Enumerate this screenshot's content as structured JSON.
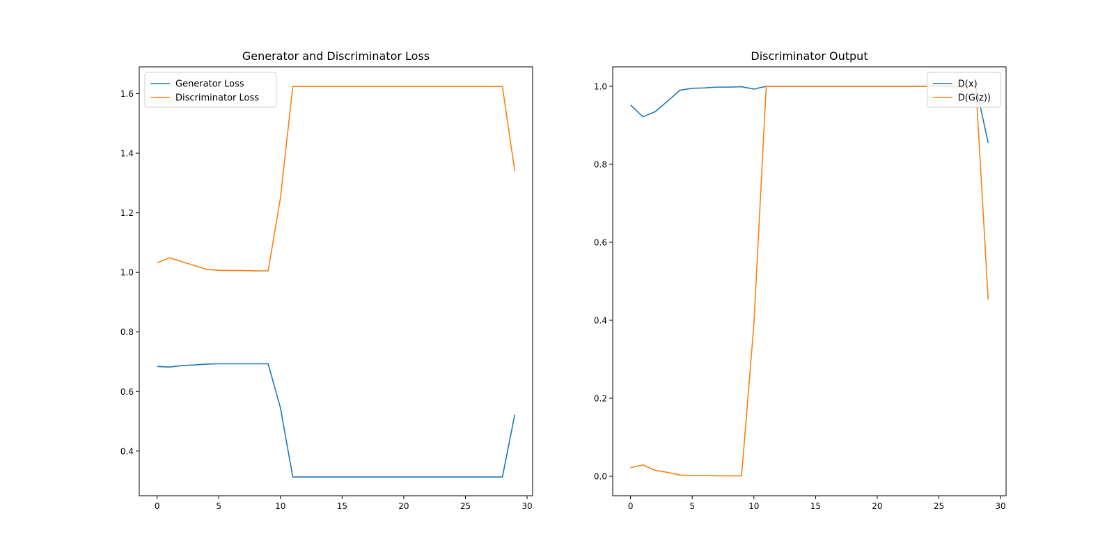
{
  "chart_data": [
    {
      "type": "line",
      "title": "Generator and Discriminator Loss",
      "xlabel": "",
      "ylabel": "",
      "xlim": [
        -1.45,
        30.45
      ],
      "ylim": [
        0.25,
        1.69
      ],
      "xticks": [
        0,
        5,
        10,
        15,
        20,
        25,
        30
      ],
      "xtick_labels": [
        "0",
        "5",
        "10",
        "15",
        "20",
        "25",
        "30"
      ],
      "yticks": [
        0.4,
        0.6,
        0.8,
        1.0,
        1.2,
        1.4,
        1.6
      ],
      "ytick_labels": [
        "0.4",
        "0.6",
        "0.8",
        "1.0",
        "1.2",
        "1.4",
        "1.6"
      ],
      "grid": false,
      "legend": "upper-left",
      "x": [
        0,
        1,
        2,
        3,
        4,
        5,
        6,
        7,
        8,
        9,
        10,
        11,
        12,
        13,
        14,
        15,
        16,
        17,
        18,
        19,
        20,
        21,
        22,
        23,
        24,
        25,
        26,
        27,
        28,
        29
      ],
      "series": [
        {
          "name": "Generator Loss",
          "color": "#1f77b4",
          "values": [
            0.684,
            0.682,
            0.687,
            0.689,
            0.692,
            0.693,
            0.693,
            0.693,
            0.693,
            0.693,
            0.545,
            0.313,
            0.313,
            0.313,
            0.313,
            0.313,
            0.313,
            0.313,
            0.313,
            0.313,
            0.313,
            0.313,
            0.313,
            0.313,
            0.313,
            0.313,
            0.313,
            0.313,
            0.313,
            0.522
          ]
        },
        {
          "name": "Discriminator Loss",
          "color": "#ff7f0e",
          "values": [
            1.032,
            1.049,
            1.036,
            1.023,
            1.01,
            1.007,
            1.006,
            1.006,
            1.005,
            1.005,
            1.25,
            1.624,
            1.624,
            1.624,
            1.624,
            1.624,
            1.624,
            1.624,
            1.624,
            1.624,
            1.624,
            1.624,
            1.624,
            1.624,
            1.624,
            1.624,
            1.624,
            1.624,
            1.624,
            1.34
          ]
        }
      ]
    },
    {
      "type": "line",
      "title": "Discriminator Output",
      "xlabel": "",
      "ylabel": "",
      "xlim": [
        -1.45,
        30.45
      ],
      "ylim": [
        -0.05,
        1.05
      ],
      "xticks": [
        0,
        5,
        10,
        15,
        20,
        25,
        30
      ],
      "xtick_labels": [
        "0",
        "5",
        "10",
        "15",
        "20",
        "25",
        "30"
      ],
      "yticks": [
        0.0,
        0.2,
        0.4,
        0.6,
        0.8,
        1.0
      ],
      "ytick_labels": [
        "0.0",
        "0.2",
        "0.4",
        "0.6",
        "0.8",
        "1.0"
      ],
      "grid": false,
      "legend": "upper-right",
      "x": [
        0,
        1,
        2,
        3,
        4,
        5,
        6,
        7,
        8,
        9,
        10,
        11,
        12,
        13,
        14,
        15,
        16,
        17,
        18,
        19,
        20,
        21,
        22,
        23,
        24,
        25,
        26,
        27,
        28,
        29
      ],
      "series": [
        {
          "name": "D(x)",
          "color": "#1f77b4",
          "values": [
            0.952,
            0.922,
            0.935,
            0.962,
            0.99,
            0.995,
            0.996,
            0.998,
            0.998,
            0.999,
            0.993,
            1.0,
            1.0,
            1.0,
            1.0,
            1.0,
            1.0,
            1.0,
            1.0,
            1.0,
            1.0,
            1.0,
            1.0,
            1.0,
            1.0,
            1.0,
            1.0,
            1.0,
            1.0,
            0.855
          ]
        },
        {
          "name": "D(G(z))",
          "color": "#ff7f0e",
          "values": [
            0.022,
            0.029,
            0.015,
            0.01,
            0.003,
            0.002,
            0.002,
            0.001,
            0.001,
            0.001,
            0.39,
            1.0,
            1.0,
            1.0,
            1.0,
            1.0,
            1.0,
            1.0,
            1.0,
            1.0,
            1.0,
            1.0,
            1.0,
            1.0,
            1.0,
            1.0,
            1.0,
            1.0,
            1.0,
            0.453
          ]
        }
      ]
    }
  ]
}
